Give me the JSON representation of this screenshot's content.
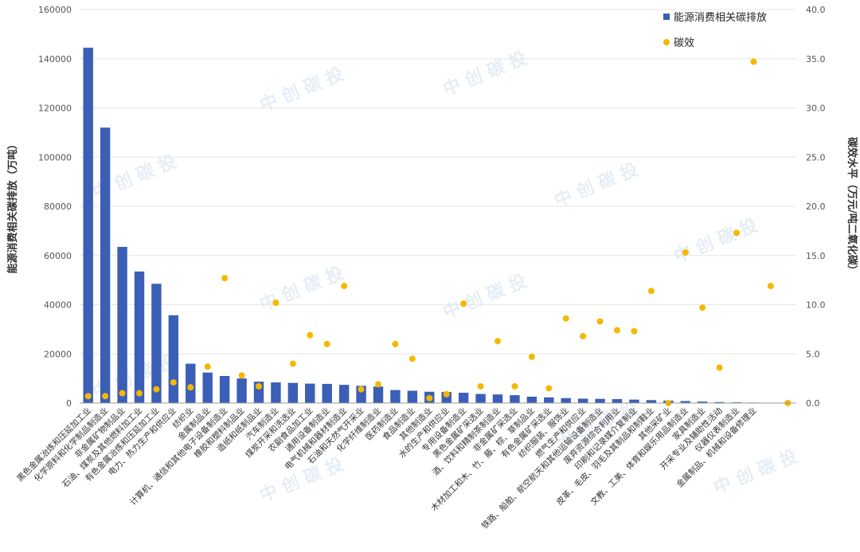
{
  "chart_data": {
    "type": "bar",
    "ylabel": "能源消费相关碳排放（万吨）",
    "y2label": "碳效水平（万元/吨二氧化碳）",
    "ylim": [
      0,
      160000
    ],
    "y2lim": [
      0,
      40
    ],
    "yticks": [
      "0",
      "20000",
      "40000",
      "60000",
      "80000",
      "100000",
      "120000",
      "140000",
      "160000"
    ],
    "y2ticks": [
      "0.0",
      "5.0",
      "10.0",
      "15.0",
      "20.0",
      "25.0",
      "30.0",
      "35.0",
      "40.0"
    ],
    "legend_position": "top-right",
    "watermark": "中 创 碳 投",
    "series": [
      {
        "name": "能源消费相关碳排放",
        "type": "bar",
        "axis": "left",
        "color": "#3b5fb6",
        "values": [
          144500,
          112000,
          63500,
          53500,
          48500,
          35700,
          16000,
          12400,
          11000,
          10000,
          8700,
          8400,
          8200,
          7900,
          7800,
          7400,
          7000,
          6700,
          5300,
          5000,
          4600,
          4500,
          4200,
          3700,
          3500,
          3200,
          2600,
          2300,
          2000,
          1800,
          1700,
          1600,
          1400,
          1200,
          1000,
          800,
          600,
          400,
          300,
          200,
          150,
          100
        ]
      },
      {
        "name": "碳效",
        "type": "scatter",
        "axis": "right",
        "color": "#f5b800",
        "values": [
          0.7,
          0.7,
          1.0,
          1.0,
          1.4,
          2.1,
          1.6,
          3.7,
          12.7,
          2.8,
          1.7,
          10.2,
          4.0,
          6.9,
          6.0,
          11.9,
          1.4,
          1.9,
          6.0,
          4.5,
          0.5,
          0.9,
          10.1,
          1.7,
          6.3,
          1.7,
          4.7,
          1.5,
          8.6,
          6.8,
          8.3,
          7.4,
          7.3,
          11.4,
          0.0,
          15.3,
          9.7,
          3.6,
          17.3,
          34.7,
          11.9,
          0.0
        ]
      }
    ],
    "categories": [
      "黑色金属冶炼和压延加工业",
      "化学原料和化学制品制造业",
      "非金属矿物制品业",
      "石油、煤炭及其他燃料加工业",
      "有色金属冶炼和压延加工业",
      "电力、热力生产和供应业",
      "纺织业",
      "金属制品业",
      "计算机、通信和其他电子设备制造业",
      "橡胶和塑料制品业",
      "造纸和纸制品业",
      "汽车制造业",
      "煤炭开采和洗选业",
      "农副食品加工业",
      "通用设备制造业",
      "电气机械和器材制造业",
      "石油和天然气开采业",
      "化学纤维制造业",
      "医药制造业",
      "食品制造业",
      "其他制造业",
      "水的生产和供应业",
      "专用设备制造业",
      "黑色金属矿采选业",
      "酒、饮料和精制茶制造业",
      "非金属矿采选业",
      "木材加工和木、竹、藤、棕、草制品业",
      "有色金属矿采选业",
      "纺织服装、服饰业",
      "燃气生产和供应业",
      "铁路、船舶、航空航天和其他运输设备制造业",
      "废弃资源综合利用业",
      "印刷和记录媒介复制业",
      "皮革、毛皮、羽毛及其制品和制鞋业",
      "其他采矿业",
      "文教、工美、体育和娱乐用品制造业",
      "家具制造业",
      "开采专业及辅助性活动",
      "仪器仪表制造业",
      "金属制品、机械和设备修理业",
      "",
      ""
    ]
  }
}
